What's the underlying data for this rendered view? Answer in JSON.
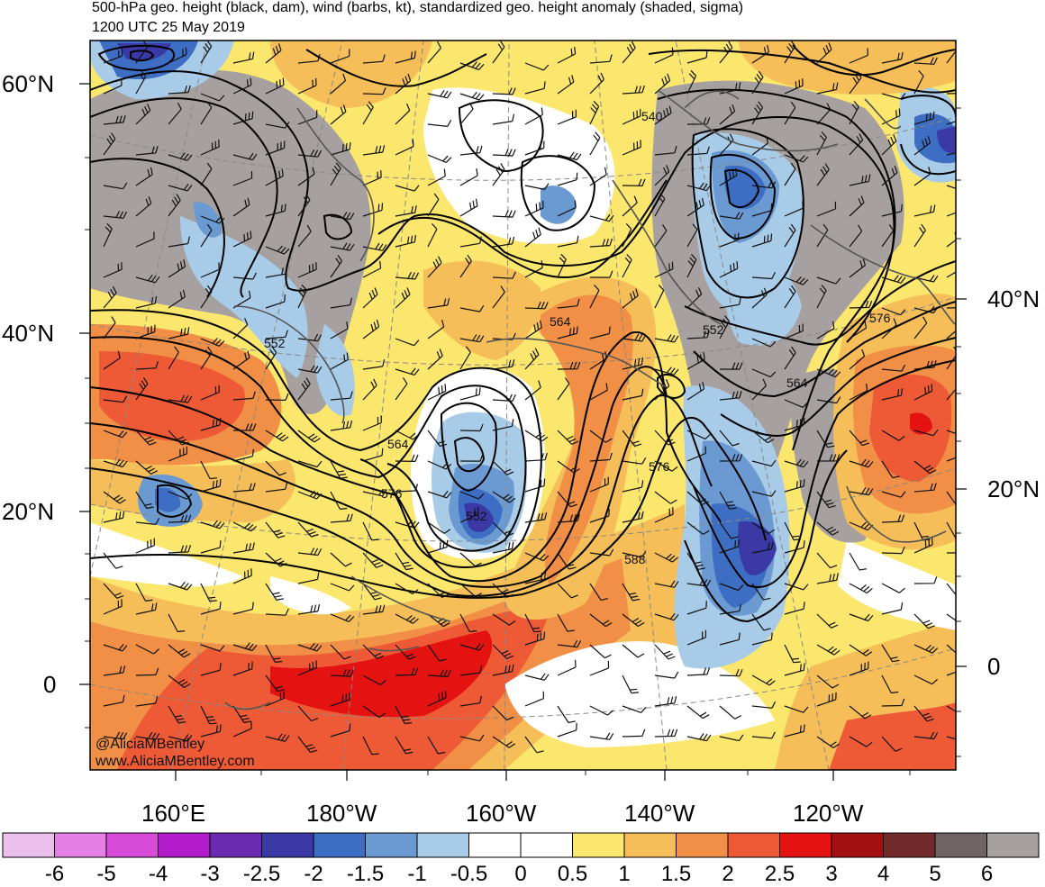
{
  "title": {
    "line1": "500-hPa geo. height (black, dam), wind (barbs, kt), standardized geo. height anomaly (shaded, sigma)",
    "line2": "1200 UTC 25 May 2019"
  },
  "credits": {
    "twitter": "@AliciaMBentley",
    "website": "www.AliciaMBentley.com"
  },
  "latitude_labels_left": [
    "60°N",
    "40°N",
    "20°N",
    "0"
  ],
  "latitude_labels_right": [
    "40°N",
    "20°N",
    "0"
  ],
  "longitude_labels": [
    "160°E",
    "180°W",
    "160°W",
    "140°W",
    "120°W"
  ],
  "contour_labels": [
    "540",
    "552",
    "552",
    "552",
    "564",
    "564",
    "564",
    "576",
    "576",
    "576",
    "588"
  ],
  "colorbar": {
    "labels": [
      "-6",
      "-5",
      "-4",
      "-3",
      "-2.5",
      "-2",
      "-1.5",
      "-1",
      "-0.5",
      "0",
      "0.5",
      "1",
      "1.5",
      "2",
      "2.5",
      "3",
      "4",
      "5",
      "6"
    ],
    "colors": [
      "#ecc0ec",
      "#e57fe6",
      "#d84ad8",
      "#b21ccb",
      "#6a2bb2",
      "#3b39a6",
      "#3d6ec3",
      "#6b99d1",
      "#a8cbe8",
      "#ffffff",
      "#ffffff",
      "#fbe66e",
      "#f5be58",
      "#f08f45",
      "#ee5a36",
      "#e51212",
      "#a31010",
      "#722a2a",
      "#6e6464",
      "#a7a0a0"
    ]
  }
}
